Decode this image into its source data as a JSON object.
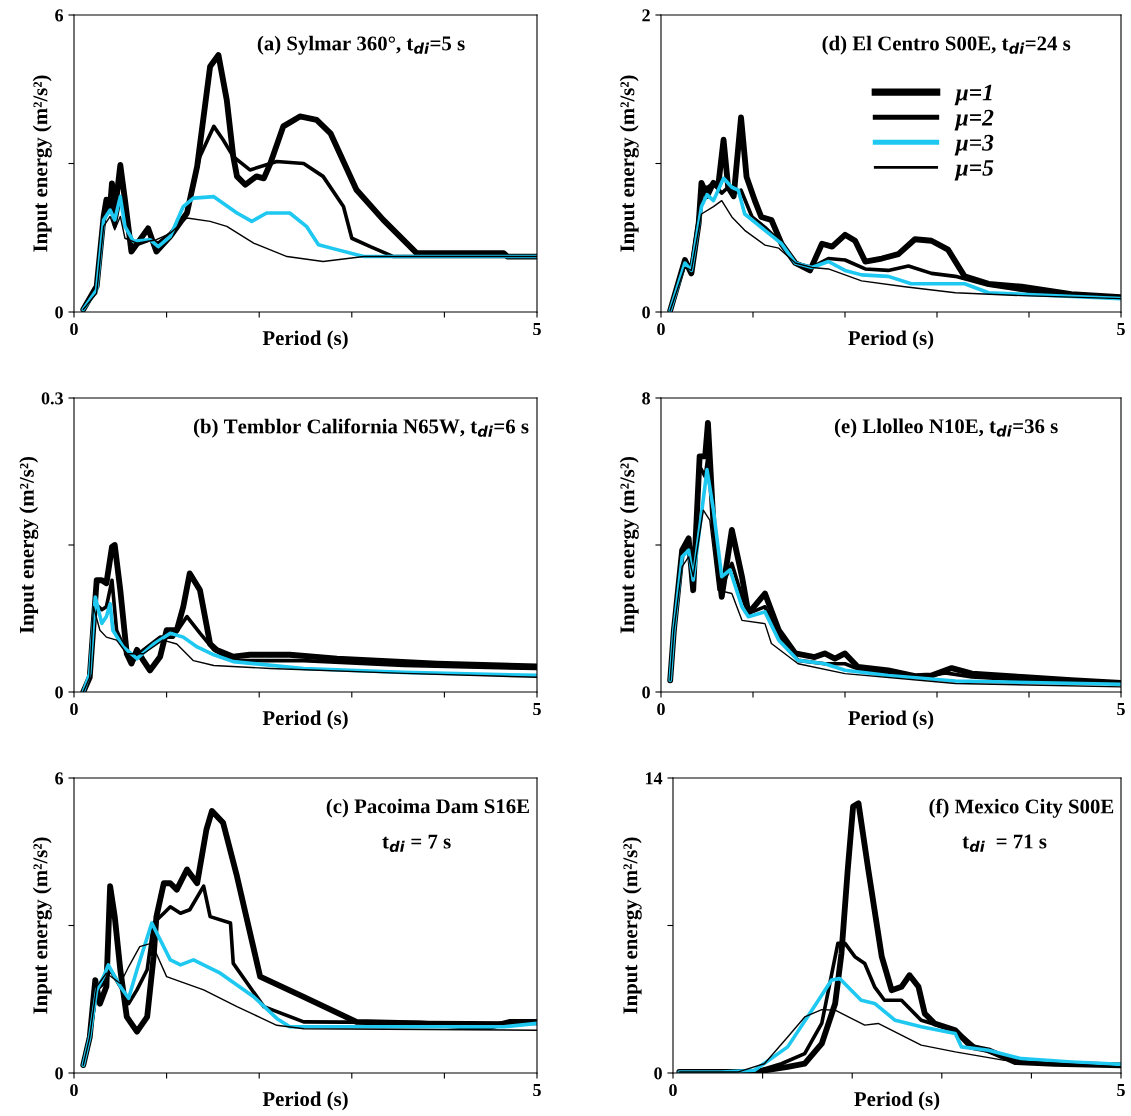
{
  "chart_data": [
    {
      "type": "line",
      "title": "(a) Sylmar 360°, t$_{di}$=5 s",
      "xlabel": "Period (s)",
      "ylabel": "Input energy (m²/s²)",
      "xlim": [
        0,
        5
      ],
      "ylim": [
        0,
        6
      ],
      "xticks": [
        0,
        {
          "value": 1,
          "label": null
        },
        {
          "value": 2,
          "label": null
        },
        {
          "value": 3,
          "label": null
        },
        {
          "value": 4,
          "label": null
        },
        5
      ],
      "yticks": [
        0,
        {
          "value": 3,
          "label": null
        },
        6
      ],
      "grid": false,
      "legend": false,
      "series": [
        {
          "color": "#000000",
          "x": [
            0.1,
            0.245,
            0.32,
            0.35,
            0.39,
            0.41,
            0.44,
            0.5,
            0.55,
            0.62,
            0.8,
            0.89,
            1.04,
            1.22,
            1.33,
            1.47,
            1.56,
            1.65,
            1.72,
            1.76,
            1.85,
            1.97,
            2.05,
            2.12,
            2.26,
            2.44,
            2.62,
            2.77,
            3.05,
            3.34,
            3.7,
            4.64,
            4.68,
            5.0
          ],
          "values": [
            0.05,
            0.52,
            1.93,
            2.27,
            2.13,
            2.6,
            2.0,
            2.97,
            2.27,
            1.22,
            1.69,
            1.22,
            1.53,
            2.0,
            2.94,
            4.96,
            5.19,
            4.28,
            3.14,
            2.74,
            2.57,
            2.74,
            2.7,
            3.0,
            3.75,
            3.95,
            3.88,
            3.61,
            2.47,
            1.86,
            1.19,
            1.19,
            1.12,
            1.12
          ]
        },
        {
          "color": "#000000",
          "x": [
            0.1,
            0.245,
            0.32,
            0.39,
            0.44,
            0.5,
            0.55,
            0.62,
            0.82,
            0.91,
            1.04,
            1.22,
            1.36,
            1.51,
            1.61,
            1.72,
            1.9,
            2.19,
            2.48,
            2.69,
            2.91,
            3.0,
            3.2,
            3.45,
            5.0
          ],
          "values": [
            0.05,
            0.52,
            1.86,
            2.27,
            1.73,
            2.33,
            1.93,
            1.32,
            1.46,
            1.39,
            1.59,
            2.0,
            3.14,
            3.75,
            3.48,
            3.14,
            2.87,
            3.04,
            3.0,
            2.74,
            2.13,
            1.49,
            1.32,
            1.12,
            1.12
          ]
        },
        {
          "color": "#1ec8f0",
          "x": [
            0.1,
            0.245,
            0.32,
            0.39,
            0.44,
            0.5,
            0.55,
            0.64,
            0.82,
            0.91,
            1.04,
            1.18,
            1.29,
            1.51,
            1.76,
            1.92,
            2.08,
            2.33,
            2.51,
            2.64,
            2.84,
            3.13,
            5.0
          ],
          "values": [
            0.05,
            0.45,
            1.86,
            2.06,
            1.86,
            2.33,
            1.73,
            1.43,
            1.46,
            1.32,
            1.53,
            2.13,
            2.3,
            2.33,
            2.0,
            1.83,
            2.0,
            2.0,
            1.73,
            1.36,
            1.26,
            1.12,
            1.12
          ]
        },
        {
          "color": "#000000",
          "x": [
            0.1,
            0.245,
            0.32,
            0.39,
            0.44,
            0.5,
            0.55,
            0.68,
            0.89,
            1.04,
            1.22,
            1.47,
            1.65,
            1.94,
            2.3,
            2.69,
            3.13,
            5.0
          ],
          "values": [
            0.05,
            0.38,
            1.73,
            1.93,
            1.66,
            1.93,
            1.49,
            1.39,
            1.46,
            1.59,
            1.9,
            1.83,
            1.73,
            1.39,
            1.12,
            1.02,
            1.12,
            1.12
          ]
        }
      ]
    },
    {
      "type": "line",
      "title": "(d) El Centro S00E, t$_{di}$=24 s",
      "xlabel": "Period (s)",
      "ylabel": "Input energy (m²/s²)",
      "xlim": [
        0,
        5
      ],
      "ylim": [
        0,
        2
      ],
      "xticks": [
        0,
        {
          "value": 1,
          "label": null
        },
        {
          "value": 2,
          "label": null
        },
        {
          "value": 3,
          "label": null
        },
        {
          "value": 4,
          "label": null
        },
        5
      ],
      "yticks": [
        0,
        {
          "value": 1,
          "label": null
        },
        2
      ],
      "grid": false,
      "legend": "top right",
      "series": [
        {
          "name": "μ=1",
          "color": "#000000",
          "x": [
            0.1,
            0.26,
            0.33,
            0.41,
            0.44,
            0.5,
            0.57,
            0.62,
            0.68,
            0.73,
            0.79,
            0.87,
            0.93,
            1.02,
            1.09,
            1.2,
            1.31,
            1.46,
            1.62,
            1.75,
            1.86,
            2.0,
            2.11,
            2.22,
            2.4,
            2.58,
            2.76,
            2.94,
            3.12,
            3.3,
            3.56,
            3.92,
            4.46,
            5.0
          ],
          "values": [
            0.01,
            0.35,
            0.26,
            0.6,
            0.87,
            0.78,
            0.87,
            0.84,
            1.16,
            0.84,
            0.78,
            1.31,
            0.91,
            0.75,
            0.64,
            0.62,
            0.46,
            0.33,
            0.28,
            0.46,
            0.44,
            0.52,
            0.48,
            0.34,
            0.36,
            0.39,
            0.49,
            0.48,
            0.42,
            0.24,
            0.19,
            0.17,
            0.12,
            0.1
          ]
        },
        {
          "name": "μ=2",
          "color": "#000000",
          "x": [
            0.1,
            0.26,
            0.33,
            0.41,
            0.46,
            0.51,
            0.57,
            0.66,
            0.73,
            0.8,
            0.87,
            0.99,
            1.13,
            1.28,
            1.46,
            1.64,
            1.82,
            2.0,
            2.22,
            2.47,
            2.69,
            2.94,
            3.2,
            3.56,
            4.1,
            5.0
          ],
          "values": [
            0.01,
            0.33,
            0.3,
            0.64,
            0.84,
            0.84,
            0.87,
            0.8,
            0.84,
            0.8,
            0.82,
            0.64,
            0.57,
            0.48,
            0.33,
            0.3,
            0.36,
            0.35,
            0.29,
            0.28,
            0.31,
            0.26,
            0.24,
            0.18,
            0.13,
            0.1
          ]
        },
        {
          "name": "μ=3",
          "color": "#1ec8f0",
          "x": [
            0.1,
            0.26,
            0.33,
            0.44,
            0.5,
            0.57,
            0.68,
            0.77,
            0.84,
            0.91,
            1.13,
            1.31,
            1.46,
            1.64,
            1.82,
            2.0,
            2.18,
            2.47,
            2.72,
            3.3,
            3.56,
            3.92,
            5.0
          ],
          "values": [
            0.01,
            0.33,
            0.28,
            0.71,
            0.79,
            0.75,
            0.9,
            0.84,
            0.82,
            0.66,
            0.55,
            0.46,
            0.33,
            0.3,
            0.34,
            0.28,
            0.25,
            0.24,
            0.19,
            0.19,
            0.13,
            0.12,
            0.09
          ]
        },
        {
          "name": "μ=5",
          "color": "#000000",
          "x": [
            0.1,
            0.26,
            0.33,
            0.44,
            0.57,
            0.66,
            0.77,
            0.91,
            1.13,
            1.28,
            1.46,
            1.64,
            1.82,
            2.18,
            2.65,
            3.2,
            3.92,
            5.0
          ],
          "values": [
            0.01,
            0.3,
            0.28,
            0.66,
            0.71,
            0.75,
            0.64,
            0.55,
            0.45,
            0.43,
            0.33,
            0.3,
            0.29,
            0.21,
            0.17,
            0.13,
            0.11,
            0.09
          ]
        }
      ]
    },
    {
      "type": "line",
      "title": "(b) Temblor California N65W, t$_{di}$=6 s",
      "xlabel": "Period (s)",
      "ylabel": "Input energy (m²/s²)",
      "xlim": [
        0,
        5
      ],
      "ylim": [
        0,
        0.3
      ],
      "xticks": [
        0,
        {
          "value": 1,
          "label": null
        },
        {
          "value": 2,
          "label": null
        },
        {
          "value": 3,
          "label": null
        },
        {
          "value": 4,
          "label": null
        },
        5
      ],
      "yticks": [
        0,
        {
          "value": 0.15,
          "label": null
        },
        0.3
      ],
      "grid": false,
      "legend": false,
      "series": [
        {
          "color": "#000000",
          "x": [
            0.1,
            0.17,
            0.245,
            0.3,
            0.35,
            0.41,
            0.44,
            0.5,
            0.57,
            0.62,
            0.68,
            0.75,
            0.82,
            0.93,
            1.0,
            1.11,
            1.18,
            1.25,
            1.36,
            1.47,
            1.54,
            1.72,
            1.9,
            2.33,
            2.84,
            3.92,
            5.0
          ],
          "values": [
            0.0,
            0.015,
            0.114,
            0.114,
            0.111,
            0.148,
            0.15,
            0.104,
            0.039,
            0.029,
            0.043,
            0.032,
            0.022,
            0.036,
            0.063,
            0.063,
            0.087,
            0.121,
            0.104,
            0.049,
            0.043,
            0.036,
            0.038,
            0.038,
            0.034,
            0.029,
            0.026
          ]
        },
        {
          "color": "#000000",
          "x": [
            0.1,
            0.17,
            0.23,
            0.3,
            0.35,
            0.41,
            0.46,
            0.57,
            0.64,
            0.75,
            0.93,
            1.07,
            1.22,
            1.36,
            1.51,
            1.72,
            2.48,
            3.56,
            5.0
          ],
          "values": [
            0.0,
            0.015,
            0.09,
            0.084,
            0.087,
            0.114,
            0.063,
            0.039,
            0.032,
            0.043,
            0.056,
            0.056,
            0.077,
            0.06,
            0.043,
            0.032,
            0.032,
            0.027,
            0.024
          ]
        },
        {
          "color": "#1ec8f0",
          "x": [
            0.1,
            0.17,
            0.23,
            0.3,
            0.35,
            0.39,
            0.42,
            0.53,
            0.68,
            0.86,
            1.04,
            1.18,
            1.33,
            1.51,
            1.72,
            2.48,
            3.56,
            5.0
          ],
          "values": [
            0.0,
            0.019,
            0.097,
            0.07,
            0.077,
            0.09,
            0.063,
            0.046,
            0.034,
            0.049,
            0.06,
            0.056,
            0.046,
            0.038,
            0.031,
            0.024,
            0.02,
            0.017
          ]
        },
        {
          "color": "#000000",
          "x": [
            0.1,
            0.17,
            0.21,
            0.28,
            0.35,
            0.46,
            0.57,
            0.75,
            0.96,
            1.11,
            1.29,
            1.51,
            2.12,
            3.56,
            5.0
          ],
          "values": [
            0.0,
            0.015,
            0.087,
            0.063,
            0.056,
            0.053,
            0.039,
            0.039,
            0.053,
            0.049,
            0.032,
            0.027,
            0.024,
            0.019,
            0.015
          ]
        }
      ]
    },
    {
      "type": "line",
      "title": "(e) Llolleo N10E, t$_{di}$=36 s",
      "xlabel": "Period (s)",
      "ylabel": "Input energy (m²/s²)",
      "xlim": [
        0,
        5
      ],
      "ylim": [
        0,
        8
      ],
      "xticks": [
        0,
        {
          "value": 1,
          "label": null
        },
        {
          "value": 2,
          "label": null
        },
        {
          "value": 3,
          "label": null
        },
        {
          "value": 4,
          "label": null
        },
        5
      ],
      "yticks": [
        0,
        {
          "value": 4,
          "label": null
        },
        8
      ],
      "grid": false,
      "legend": false,
      "series": [
        {
          "color": "#000000",
          "x": [
            0.1,
            0.14,
            0.23,
            0.3,
            0.35,
            0.42,
            0.48,
            0.51,
            0.57,
            0.66,
            0.77,
            0.88,
            0.95,
            1.13,
            1.28,
            1.46,
            1.67,
            1.78,
            1.89,
            2.0,
            2.14,
            2.47,
            2.76,
            2.94,
            3.16,
            3.38,
            3.92,
            4.46,
            5.0
          ],
          "values": [
            0.32,
            1.68,
            3.86,
            4.18,
            2.77,
            6.41,
            6.41,
            7.32,
            4.59,
            2.59,
            4.41,
            3.14,
            2.14,
            2.68,
            1.68,
            1.05,
            0.95,
            1.05,
            0.91,
            1.05,
            0.68,
            0.59,
            0.43,
            0.45,
            0.65,
            0.5,
            0.41,
            0.32,
            0.25
          ]
        },
        {
          "color": "#000000",
          "x": [
            0.1,
            0.14,
            0.23,
            0.3,
            0.35,
            0.42,
            0.48,
            0.51,
            0.59,
            0.66,
            0.77,
            0.88,
            0.95,
            1.13,
            1.28,
            1.49,
            1.78,
            2.0,
            2.18,
            2.83,
            3.09,
            3.38,
            4.28,
            5.0
          ],
          "values": [
            0.32,
            1.68,
            3.77,
            4.05,
            2.86,
            6.14,
            5.86,
            6.41,
            4.14,
            2.86,
            3.5,
            2.59,
            2.14,
            2.32,
            1.5,
            0.86,
            0.77,
            0.77,
            0.59,
            0.41,
            0.52,
            0.41,
            0.27,
            0.23
          ]
        },
        {
          "color": "#1ec8f0",
          "x": [
            0.1,
            0.14,
            0.23,
            0.3,
            0.35,
            0.5,
            0.57,
            0.66,
            0.75,
            0.88,
            0.95,
            1.13,
            1.28,
            1.49,
            1.78,
            2.0,
            2.47,
            3.2,
            5.0
          ],
          "values": [
            0.32,
            1.68,
            3.68,
            3.86,
            3.05,
            6.05,
            4.95,
            3.14,
            3.32,
            2.32,
            2.05,
            2.18,
            1.41,
            0.86,
            0.77,
            0.59,
            0.45,
            0.3,
            0.21
          ]
        },
        {
          "color": "#000000",
          "x": [
            0.1,
            0.14,
            0.23,
            0.3,
            0.35,
            0.46,
            0.53,
            0.62,
            0.77,
            0.88,
            1.13,
            1.2,
            1.49,
            2.0,
            3.2,
            5.0
          ],
          "values": [
            0.32,
            1.68,
            3.41,
            3.68,
            3.14,
            4.95,
            4.68,
            2.77,
            2.68,
            1.95,
            1.86,
            1.32,
            0.77,
            0.5,
            0.23,
            0.14
          ]
        }
      ]
    },
    {
      "type": "line",
      "title": "(c) Pacoima Dam S16E",
      "subtitle": "t$_{di}$ = 7 s",
      "xlabel": "Period (s)",
      "ylabel": "Input energy (m²/s²)",
      "xlim": [
        0,
        5
      ],
      "ylim": [
        0,
        6
      ],
      "xticks": [
        0,
        {
          "value": 1,
          "label": null
        },
        {
          "value": 2,
          "label": null
        },
        {
          "value": 3,
          "label": null
        },
        {
          "value": 4,
          "label": null
        },
        5
      ],
      "yticks": [
        0,
        {
          "value": 3,
          "label": null
        },
        6
      ],
      "grid": false,
      "legend": false,
      "series": [
        {
          "color": "#000000",
          "x": [
            0.1,
            0.17,
            0.23,
            0.28,
            0.35,
            0.39,
            0.44,
            0.5,
            0.57,
            0.68,
            0.79,
            0.86,
            0.89,
            0.97,
            1.04,
            1.11,
            1.22,
            1.33,
            1.43,
            1.49,
            1.61,
            1.76,
            2.01,
            2.48,
            3.05,
            3.74,
            4.28,
            4.5,
            4.71,
            5.0
          ],
          "values": [
            0.16,
            0.73,
            1.89,
            1.41,
            1.76,
            3.8,
            3.18,
            2.1,
            1.14,
            0.84,
            1.14,
            2.37,
            3.18,
            3.86,
            3.86,
            3.73,
            4.14,
            3.86,
            4.95,
            5.33,
            5.09,
            4.0,
            1.96,
            1.55,
            1.04,
            1.01,
            0.94,
            0.94,
            1.04,
            1.04
          ]
        },
        {
          "color": "#000000",
          "x": [
            0.1,
            0.17,
            0.245,
            0.32,
            0.39,
            0.5,
            0.59,
            0.68,
            0.79,
            0.86,
            0.97,
            1.04,
            1.15,
            1.25,
            1.4,
            1.47,
            1.69,
            1.72,
            2.05,
            2.48,
            5.0
          ],
          "values": [
            0.16,
            0.73,
            1.69,
            1.82,
            2.1,
            1.76,
            1.41,
            1.69,
            2.1,
            3.05,
            3.25,
            3.38,
            3.25,
            3.32,
            3.8,
            3.18,
            3.05,
            2.23,
            1.35,
            1.04,
            1.01
          ]
        },
        {
          "color": "#1ec8f0",
          "x": [
            0.1,
            0.17,
            0.245,
            0.32,
            0.37,
            0.5,
            0.59,
            0.68,
            0.84,
            1.04,
            1.15,
            1.29,
            1.58,
            1.94,
            2.19,
            2.33,
            3.92,
            4.64,
            5.0
          ],
          "values": [
            0.16,
            0.73,
            1.69,
            1.96,
            2.2,
            1.76,
            1.52,
            2.1,
            3.05,
            2.3,
            2.2,
            2.3,
            2.03,
            1.55,
            1.11,
            0.94,
            0.94,
            0.94,
            1.01
          ]
        },
        {
          "color": "#000000",
          "x": [
            0.1,
            0.17,
            0.245,
            0.35,
            0.5,
            0.59,
            0.71,
            0.84,
            1.0,
            1.15,
            1.4,
            1.76,
            2.19,
            2.48,
            5.0
          ],
          "values": [
            0.16,
            0.73,
            1.76,
            2.03,
            1.82,
            2.16,
            2.57,
            2.64,
            1.96,
            1.86,
            1.69,
            1.35,
            0.97,
            0.9,
            0.87
          ]
        }
      ]
    },
    {
      "type": "line",
      "title": "(f) Mexico City S00E",
      "subtitle": "t$_{di}$  = 71 s",
      "xlabel": "Period (s)",
      "ylabel": "Input energy (m²/s²)",
      "xlim": [
        0,
        5
      ],
      "ylim": [
        0,
        14
      ],
      "xticks": [
        0,
        {
          "value": 1,
          "label": null
        },
        {
          "value": 2,
          "label": null
        },
        {
          "value": 3,
          "label": null
        },
        {
          "value": 4,
          "label": null
        },
        5
      ],
      "yticks": [
        0,
        {
          "value": 7,
          "label": null
        },
        14
      ],
      "grid": false,
      "legend": false,
      "series": [
        {
          "color": "#000000",
          "x": [
            0.07,
            0.91,
            1.28,
            1.47,
            1.66,
            1.81,
            1.88,
            1.95,
            2.01,
            2.07,
            2.18,
            2.33,
            2.44,
            2.55,
            2.64,
            2.74,
            2.81,
            2.92,
            3.15,
            3.33,
            3.52,
            3.82,
            4.26,
            5.0
          ],
          "values": [
            0.05,
            0.05,
            0.29,
            0.44,
            1.39,
            3.3,
            5.67,
            9.64,
            12.65,
            12.8,
            9.64,
            5.52,
            3.93,
            4.09,
            4.64,
            4.09,
            2.82,
            2.35,
            2.03,
            1.24,
            1.08,
            0.52,
            0.44,
            0.36
          ]
        },
        {
          "color": "#000000",
          "x": [
            0.07,
            0.91,
            1.21,
            1.47,
            1.66,
            1.84,
            1.92,
            2.03,
            2.14,
            2.25,
            2.36,
            2.55,
            2.77,
            2.89,
            3.15,
            3.37,
            3.7,
            4.08,
            5.0
          ],
          "values": [
            0.05,
            0.05,
            0.44,
            0.92,
            2.35,
            6.15,
            6.15,
            5.52,
            5.2,
            4.09,
            3.45,
            3.45,
            2.5,
            2.35,
            2.03,
            1.24,
            0.76,
            0.52,
            0.36
          ]
        },
        {
          "color": "#1ec8f0",
          "x": [
            0.07,
            0.54,
            0.91,
            1.28,
            1.55,
            1.77,
            1.86,
            2.1,
            2.25,
            2.48,
            2.77,
            3.15,
            3.22,
            3.52,
            3.89,
            4.45,
            5.0
          ],
          "values": [
            0.05,
            0.05,
            0.13,
            1.24,
            2.98,
            4.41,
            4.48,
            3.45,
            3.3,
            2.5,
            2.19,
            1.87,
            1.24,
            1.08,
            0.68,
            0.52,
            0.41
          ]
        },
        {
          "color": "#000000",
          "x": [
            0.07,
            0.73,
            1.02,
            1.28,
            1.47,
            1.66,
            1.81,
            2.14,
            2.29,
            2.77,
            3.15,
            3.7,
            5.0
          ],
          "values": [
            0.05,
            0.05,
            0.44,
            1.71,
            2.66,
            3.01,
            2.98,
            2.27,
            2.35,
            1.32,
            1.0,
            0.6,
            0.29
          ]
        }
      ]
    }
  ]
}
